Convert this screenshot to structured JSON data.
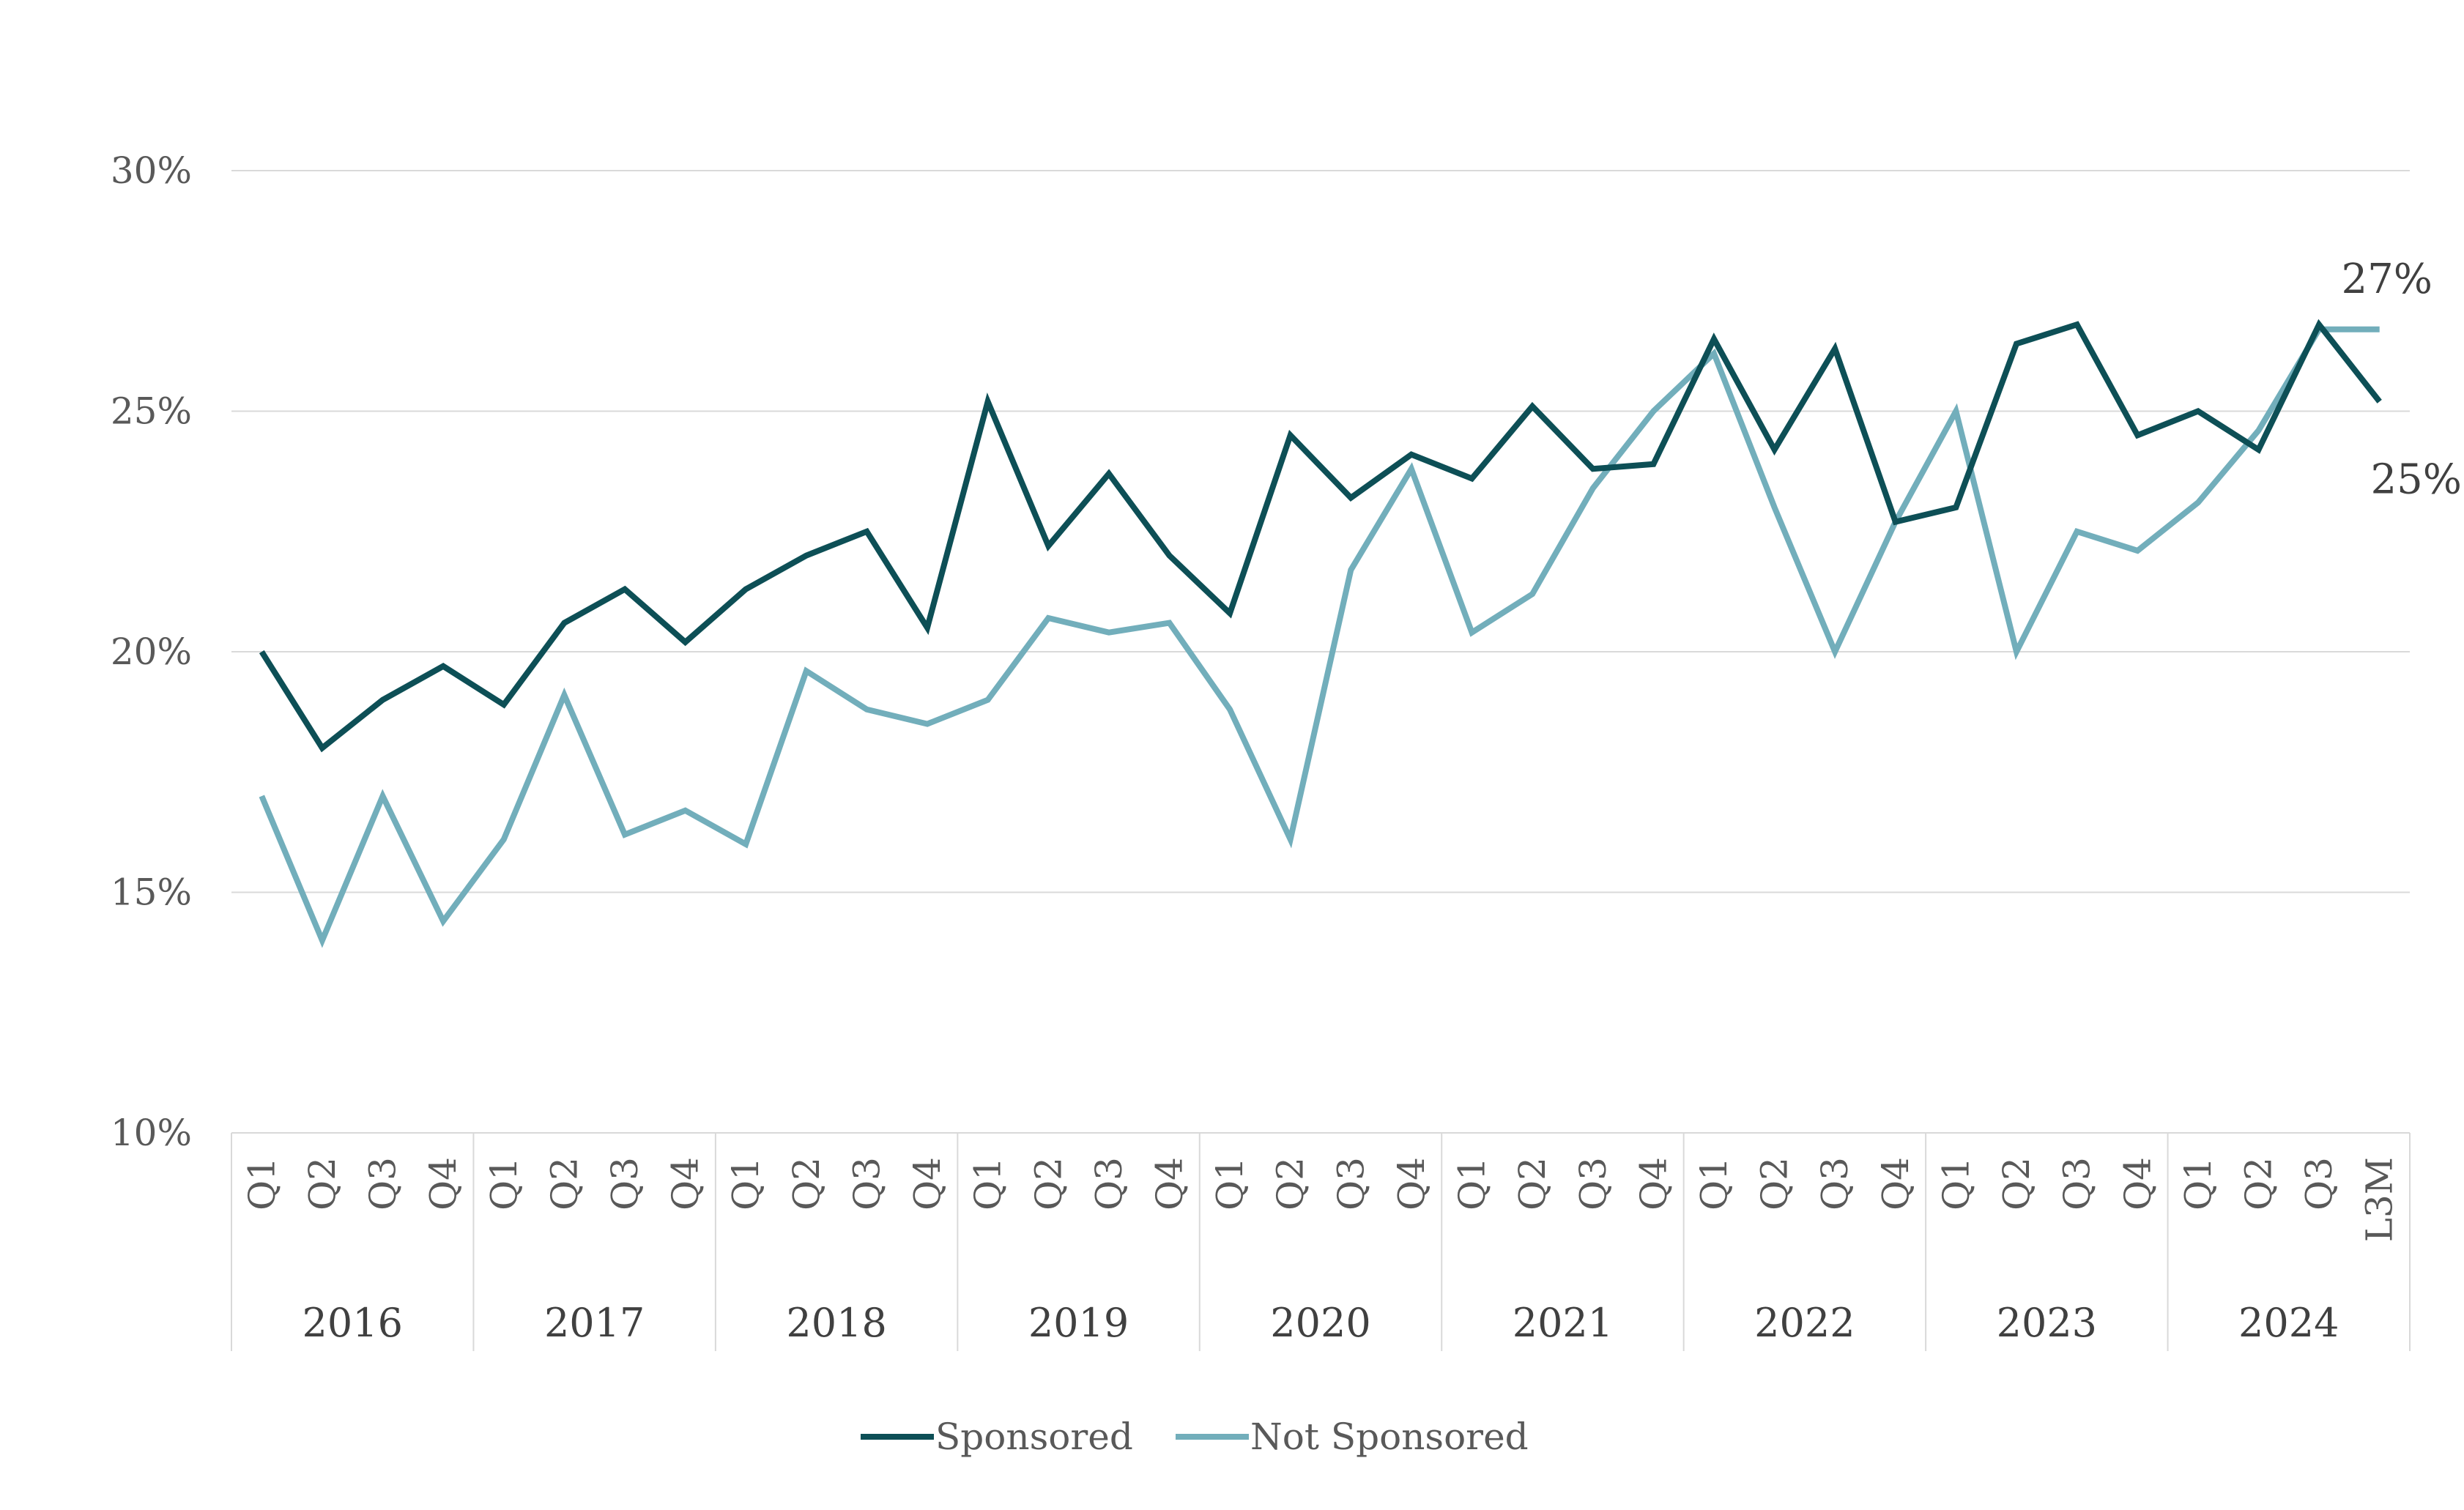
{
  "chart_data": {
    "type": "line",
    "title": "",
    "xlabel": "",
    "ylabel": "",
    "ylim": [
      0.1,
      0.3
    ],
    "y_ticks": [
      0.1,
      0.15,
      0.2,
      0.25,
      0.3
    ],
    "y_tick_labels": [
      "10%",
      "15%",
      "20%",
      "25%",
      "30%"
    ],
    "grid": "horizontal",
    "legend_position": "bottom-center",
    "groups": [
      {
        "label": "2016",
        "categories": [
          "Q1",
          "Q2",
          "Q3",
          "Q4"
        ]
      },
      {
        "label": "2017",
        "categories": [
          "Q1",
          "Q2",
          "Q3",
          "Q4"
        ]
      },
      {
        "label": "2018",
        "categories": [
          "Q1",
          "Q2",
          "Q3",
          "Q4"
        ]
      },
      {
        "label": "2019",
        "categories": [
          "Q1",
          "Q2",
          "Q3",
          "Q4"
        ]
      },
      {
        "label": "2020",
        "categories": [
          "Q1",
          "Q2",
          "Q3",
          "Q4"
        ]
      },
      {
        "label": "2021",
        "categories": [
          "Q1",
          "Q2",
          "Q3",
          "Q4"
        ]
      },
      {
        "label": "2022",
        "categories": [
          "Q1",
          "Q2",
          "Q3",
          "Q4"
        ]
      },
      {
        "label": "2023",
        "categories": [
          "Q1",
          "Q2",
          "Q3",
          "Q4"
        ]
      },
      {
        "label": "2024",
        "categories": [
          "Q1",
          "Q2",
          "Q3",
          "L3M"
        ]
      }
    ],
    "series": [
      {
        "name": "Sponsored",
        "color": "#0d4f56",
        "values": [
          0.2,
          0.18,
          0.19,
          0.197,
          0.189,
          0.206,
          0.213,
          0.202,
          0.213,
          0.22,
          0.225,
          0.205,
          0.252,
          0.222,
          0.237,
          0.22,
          0.208,
          0.245,
          0.232,
          0.241,
          0.236,
          0.251,
          0.238,
          0.239,
          0.265,
          0.242,
          0.263,
          0.227,
          0.23,
          0.264,
          0.268,
          0.245,
          0.25,
          0.242,
          0.268,
          0.252
        ],
        "end_label": "25%"
      },
      {
        "name": "Not Sponsored",
        "color": "#72aebb",
        "values": [
          0.17,
          0.14,
          0.17,
          0.144,
          0.161,
          0.191,
          0.162,
          0.167,
          0.16,
          0.196,
          0.188,
          0.185,
          0.19,
          0.207,
          0.204,
          0.206,
          0.188,
          0.161,
          0.217,
          0.238,
          0.204,
          0.212,
          0.234,
          0.25,
          0.262,
          0.23,
          0.2,
          0.227,
          0.25,
          0.2,
          0.225,
          0.221,
          0.231,
          0.246,
          0.267,
          0.267
        ],
        "end_label": "27%"
      }
    ]
  }
}
